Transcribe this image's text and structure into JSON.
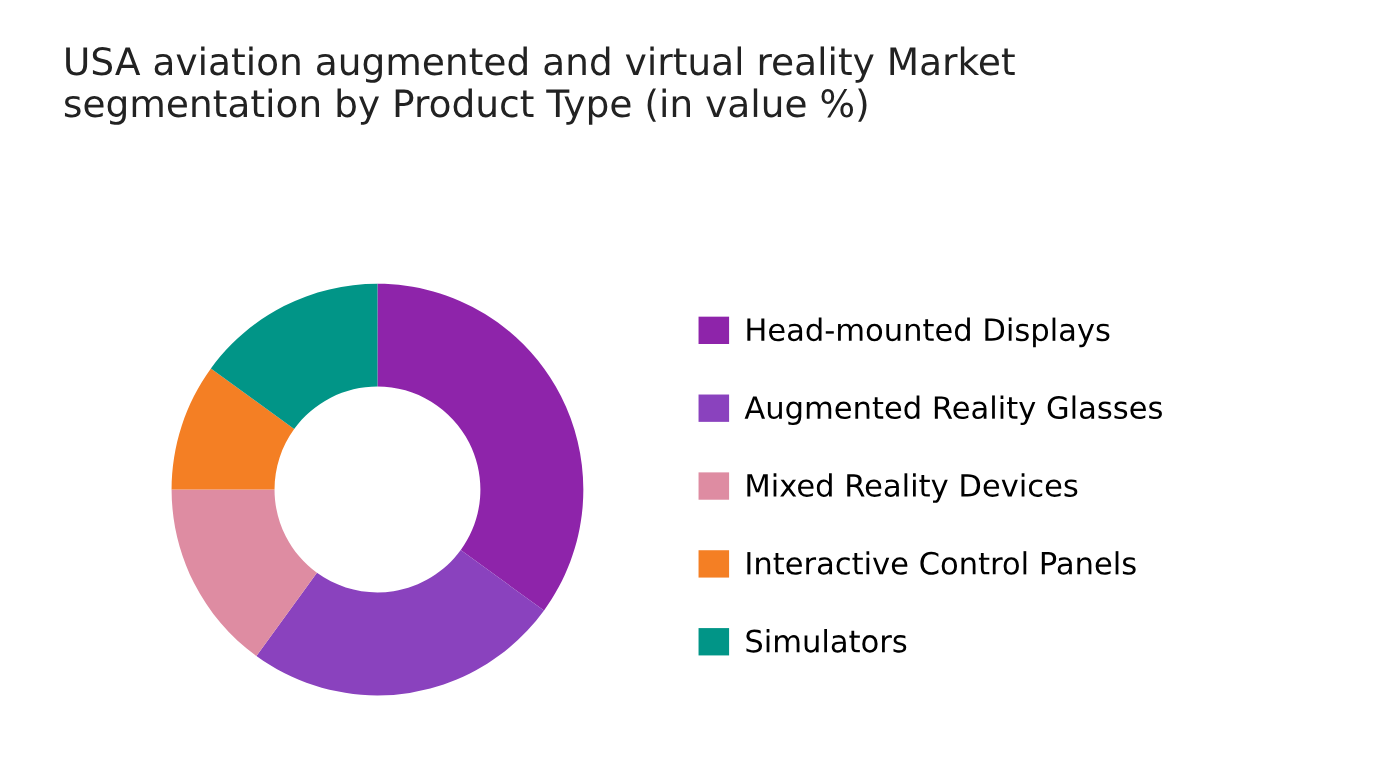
{
  "chart_data": {
    "type": "donut",
    "title": "USA aviation augmented and virtual reality Market\nsegmentation by Product Type (in value %)",
    "categories": [
      "Head-mounted Displays",
      "Augmented Reality Glasses",
      "Mixed Reality Devices",
      "Interactive Control Panels",
      "Simulators"
    ],
    "values": [
      35,
      25,
      15,
      10,
      15
    ],
    "colors": [
      "#8e24aa",
      "#8a42be",
      "#de8ca2",
      "#f47f24",
      "#019587"
    ],
    "legend": "right"
  }
}
